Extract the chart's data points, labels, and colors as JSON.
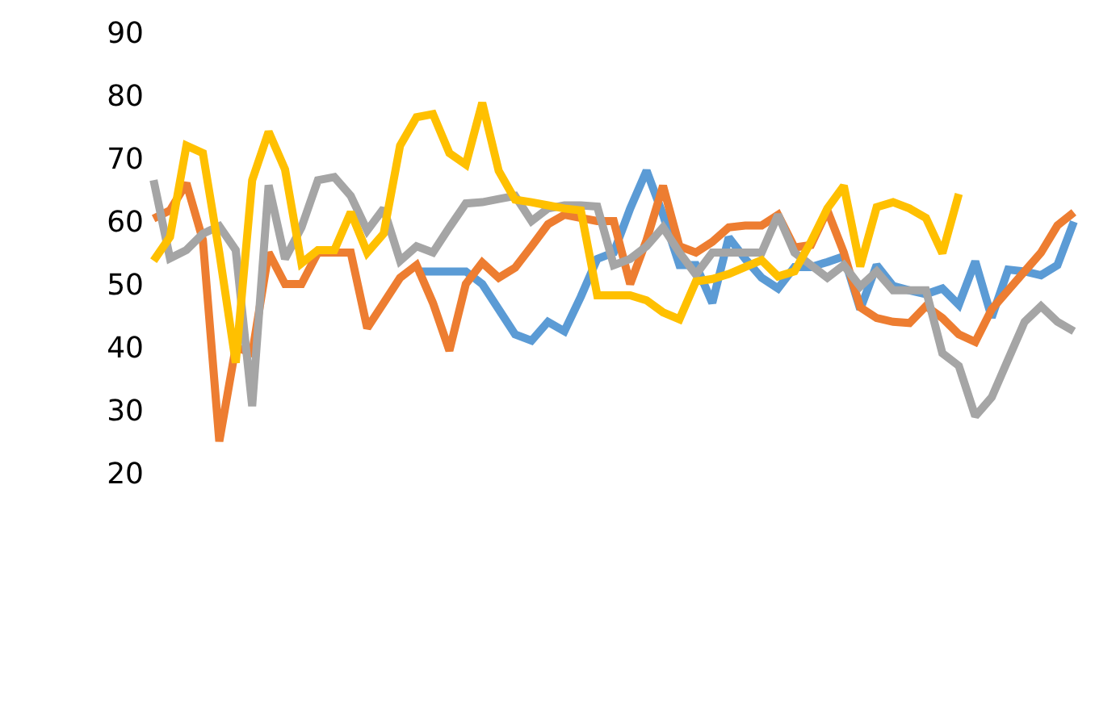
{
  "chart_data": {
    "type": "line",
    "categories": [
      null,
      null,
      null,
      null,
      null,
      null,
      null,
      null,
      null,
      null,
      null,
      null,
      null,
      null,
      null,
      null,
      null,
      null,
      null,
      null,
      null,
      null,
      null,
      null,
      null,
      null,
      null,
      null,
      null,
      null,
      null,
      null,
      null,
      null,
      null,
      null,
      null,
      null,
      null,
      null,
      null,
      null,
      null,
      null,
      null,
      null,
      null,
      null,
      null,
      null,
      null,
      null,
      null,
      null,
      null,
      null,
      null
    ],
    "series": [
      {
        "color": "#5b9bd5",
        "values": [
          null,
          null,
          null,
          null,
          null,
          null,
          null,
          null,
          null,
          null,
          null,
          null,
          null,
          null,
          null,
          null,
          52,
          52,
          52,
          52,
          50,
          46,
          42,
          41,
          44,
          42.5,
          48,
          54,
          55,
          62,
          68,
          61,
          53,
          53,
          47,
          57.4,
          54,
          51,
          49.3,
          52.7,
          52.7,
          53.5,
          54.4,
          46,
          53,
          49.7,
          49,
          48.4,
          49.3,
          46.7,
          53.6,
          44.7,
          52.3,
          52,
          51.4,
          53,
          59.9
        ]
      },
      {
        "color": "#ed7d31",
        "values": [
          60.4,
          61.7,
          66,
          57,
          25,
          40,
          39,
          55,
          50,
          50,
          55,
          55,
          55,
          43,
          47,
          51,
          53,
          47,
          39.4,
          50,
          53.4,
          51,
          52.6,
          56,
          59.5,
          61,
          60.5,
          60,
          60,
          50,
          57,
          65.6,
          56,
          55,
          56.7,
          59,
          59.3,
          59.3,
          61,
          55.8,
          56.2,
          61.7,
          55,
          46.3,
          44.6,
          44,
          43.8,
          46.5,
          44.6,
          42,
          40.8,
          46,
          49,
          52,
          55,
          59.3,
          61.4
        ]
      },
      {
        "color": "#a5a5a5",
        "values": [
          66.5,
          54.1,
          55.4,
          58,
          59.2,
          55.4,
          30.6,
          65.7,
          54,
          59,
          66.5,
          67,
          64,
          58.5,
          62,
          53.7,
          56,
          55,
          59,
          62.8,
          63,
          63.5,
          64,
          60,
          62,
          62.5,
          62.5,
          62.3,
          53,
          54,
          56,
          59,
          55,
          51.5,
          55,
          55,
          55,
          55,
          61,
          55,
          53,
          51,
          53,
          49.6,
          52,
          49,
          49,
          49,
          39,
          37,
          29,
          32,
          38,
          44,
          46.5,
          44,
          42.5
        ]
      },
      {
        "color": "#ffc000",
        "values": [
          53.7,
          57.5,
          72,
          70.8,
          55,
          37.5,
          66.5,
          74.2,
          68.2,
          53.3,
          55.4,
          55.4,
          61.4,
          55,
          58,
          72,
          76.5,
          77,
          70.8,
          69,
          78.8,
          68,
          63.4,
          63,
          62.5,
          62,
          61.7,
          48.2,
          48.2,
          48.2,
          47.4,
          45.5,
          44.4,
          50.4,
          50.8,
          51.6,
          52.7,
          53.8,
          51.2,
          52,
          56.7,
          62,
          65.6,
          52.8,
          62.2,
          63,
          62,
          60.5,
          54.9,
          64.3,
          null,
          null,
          null,
          null,
          null,
          null,
          null
        ]
      }
    ],
    "ylim": [
      20,
      90
    ],
    "yticks": [
      20,
      30,
      40,
      50,
      60,
      70,
      80,
      90
    ],
    "tick_labels": "y",
    "marker": "none",
    "line_style": "solid"
  }
}
